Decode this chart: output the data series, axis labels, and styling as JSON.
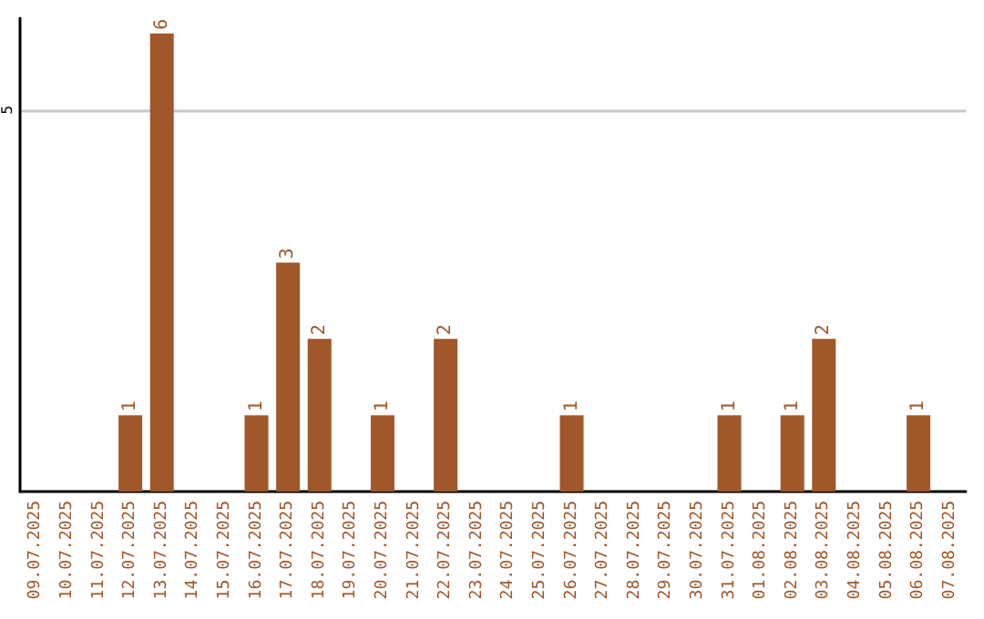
{
  "chart_data": {
    "type": "bar",
    "categories": [
      "09.07.2025",
      "10.07.2025",
      "11.07.2025",
      "12.07.2025",
      "13.07.2025",
      "14.07.2025",
      "15.07.2025",
      "16.07.2025",
      "17.07.2025",
      "18.07.2025",
      "19.07.2025",
      "20.07.2025",
      "21.07.2025",
      "22.07.2025",
      "23.07.2025",
      "24.07.2025",
      "25.07.2025",
      "26.07.2025",
      "27.07.2025",
      "28.07.2025",
      "29.07.2025",
      "30.07.2025",
      "31.07.2025",
      "01.08.2025",
      "02.08.2025",
      "03.08.2025",
      "04.08.2025",
      "05.08.2025",
      "06.08.2025",
      "07.08.2025"
    ],
    "values": [
      0,
      0,
      0,
      1,
      6,
      0,
      0,
      1,
      3,
      2,
      0,
      1,
      0,
      2,
      0,
      0,
      0,
      1,
      0,
      0,
      0,
      0,
      1,
      0,
      1,
      2,
      0,
      0,
      1,
      0
    ],
    "value_labels": [
      null,
      null,
      null,
      "1",
      "6",
      null,
      null,
      "1",
      "3",
      "2",
      null,
      "1",
      null,
      "2",
      null,
      null,
      null,
      "1",
      null,
      null,
      null,
      null,
      "1",
      null,
      "1",
      "2",
      null,
      null,
      "1",
      null
    ],
    "color": "#a0572a",
    "ylim": [
      0,
      6.2
    ],
    "yticks": [
      5
    ],
    "grid": "y"
  }
}
